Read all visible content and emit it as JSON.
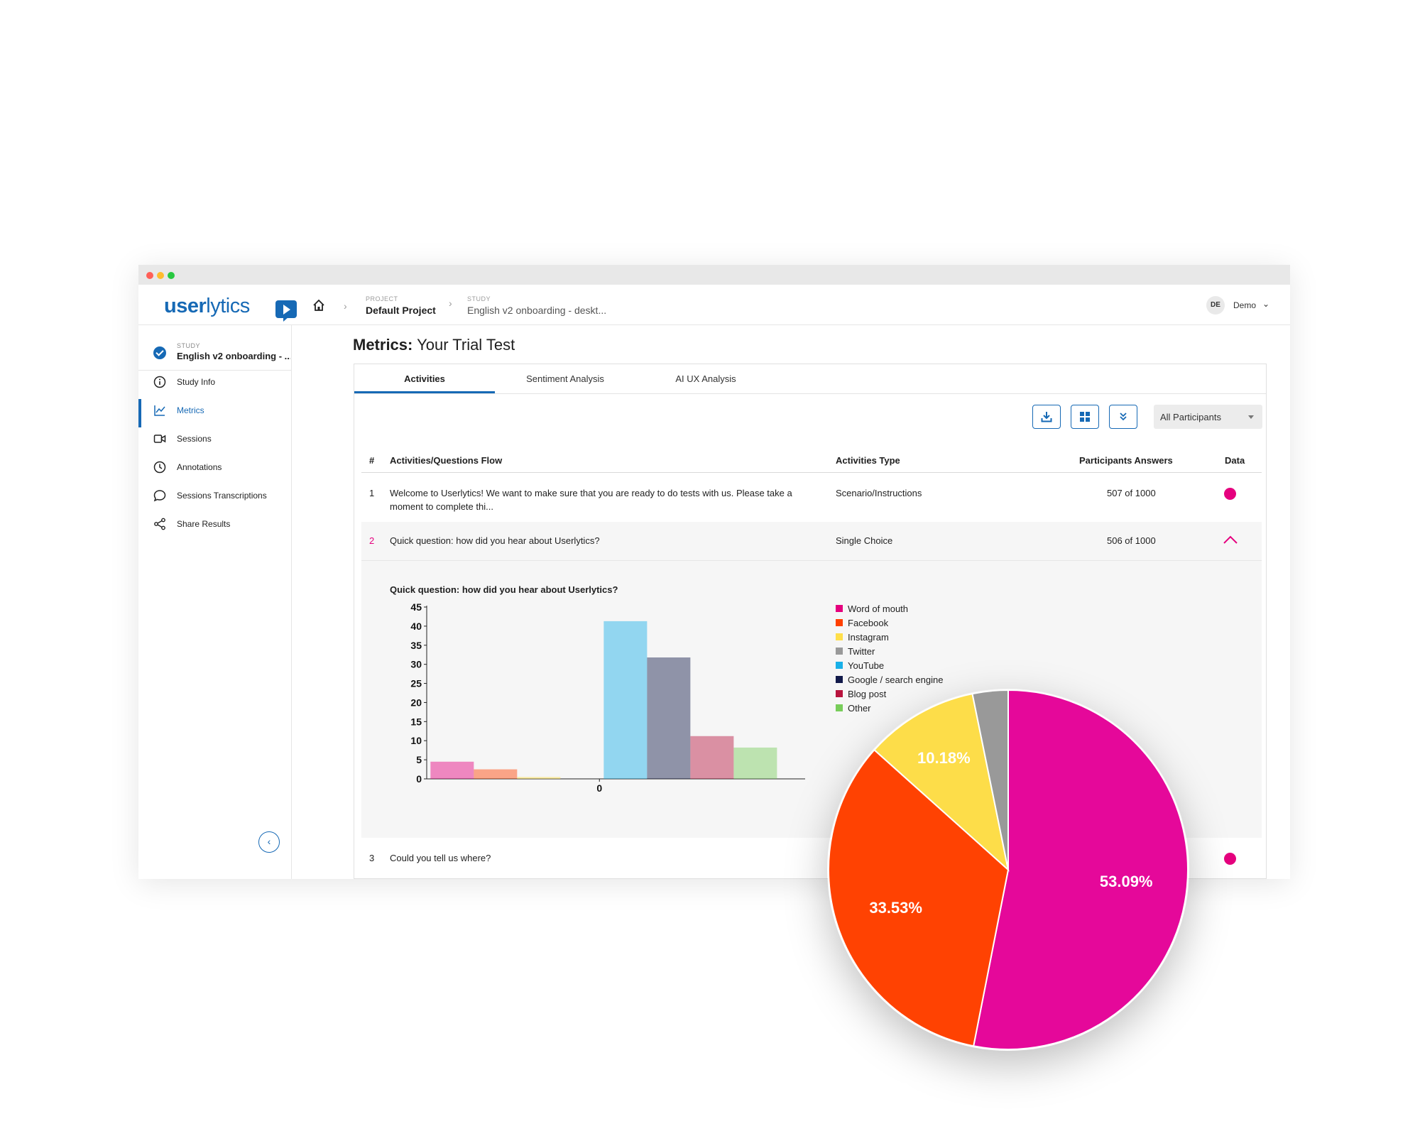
{
  "header": {
    "logo_text_bold": "user",
    "logo_text_light": "lytics",
    "project_label": "PROJECT",
    "project_name": "Default Project",
    "study_label": "STUDY",
    "study_name": "English v2 onboarding - deskt...",
    "user_initials": "DE",
    "user_name": "Demo"
  },
  "sidebar": {
    "study_label": "STUDY",
    "study_name": "English v2 onboarding - ...",
    "items": [
      {
        "label": "Study Info",
        "icon": "info-icon"
      },
      {
        "label": "Metrics",
        "icon": "chart-line-icon"
      },
      {
        "label": "Sessions",
        "icon": "video-icon"
      },
      {
        "label": "Annotations",
        "icon": "clock-icon"
      },
      {
        "label": "Sessions Transcriptions",
        "icon": "chat-bubble-icon"
      },
      {
        "label": "Share Results",
        "icon": "share-icon"
      }
    ]
  },
  "page": {
    "title_bold": "Metrics:",
    "title_rest": " Your Trial Test"
  },
  "tabs": [
    "Activities",
    "Sentiment Analysis",
    "AI UX Analysis"
  ],
  "toolbar": {
    "participants_filter": "All Participants"
  },
  "table": {
    "headers": [
      "#",
      "Activities/Questions Flow",
      "Activities Type",
      "Participants Answers",
      "Data"
    ],
    "rows": [
      {
        "num": "1",
        "text": "Welcome to Userlytics! We want to make sure that you are ready to do tests with us. Please take a moment to complete thi...",
        "type": "Scenario/Instructions",
        "answers": "507 of 1000"
      },
      {
        "num": "2",
        "text": "Quick question: how did you hear about Userlytics?",
        "type": "Single Choice",
        "answers": "506 of 1000"
      },
      {
        "num": "3",
        "text": "Could you tell us where?",
        "type": "",
        "answers": ""
      }
    ]
  },
  "colors": {
    "accent": "#1669b5",
    "data_dot": "#e5007e",
    "highlight_num": "#e5007e"
  },
  "chart_data": [
    {
      "type": "bar",
      "title": "Quick question: how did you hear about Userlytics?",
      "categories": [
        "0"
      ],
      "ylim": [
        0,
        45
      ],
      "yticks": [
        0,
        5,
        10,
        15,
        20,
        25,
        30,
        35,
        40,
        45
      ],
      "series": [
        {
          "name": "Word of mouth",
          "color": "#e5007e",
          "values": [
            4.5
          ]
        },
        {
          "name": "Facebook",
          "color": "#ff4000",
          "values": [
            2.5
          ]
        },
        {
          "name": "Instagram",
          "color": "#ffdf4a",
          "values": [
            0.5
          ]
        },
        {
          "name": "Twitter",
          "color": "#999999",
          "values": [
            0
          ]
        },
        {
          "name": "YouTube",
          "color": "#19b0e8",
          "values": [
            41.3
          ]
        },
        {
          "name": "Google / search engine",
          "color": "#121a4a",
          "values": [
            31.8
          ]
        },
        {
          "name": "Blog post",
          "color": "#b8143e",
          "values": [
            11.2
          ]
        },
        {
          "name": "Other",
          "color": "#78cd5a",
          "values": [
            8.2
          ]
        }
      ],
      "legend": "right"
    },
    {
      "type": "pie",
      "slices": [
        {
          "label": "53.09%",
          "value": 53.09,
          "color": "#e5089a"
        },
        {
          "label": "33.53%",
          "value": 33.53,
          "color": "#ff4202"
        },
        {
          "label": "10.18%",
          "value": 10.18,
          "color": "#fddd49"
        },
        {
          "label": "",
          "value": 3.2,
          "color": "#999999"
        }
      ]
    }
  ]
}
